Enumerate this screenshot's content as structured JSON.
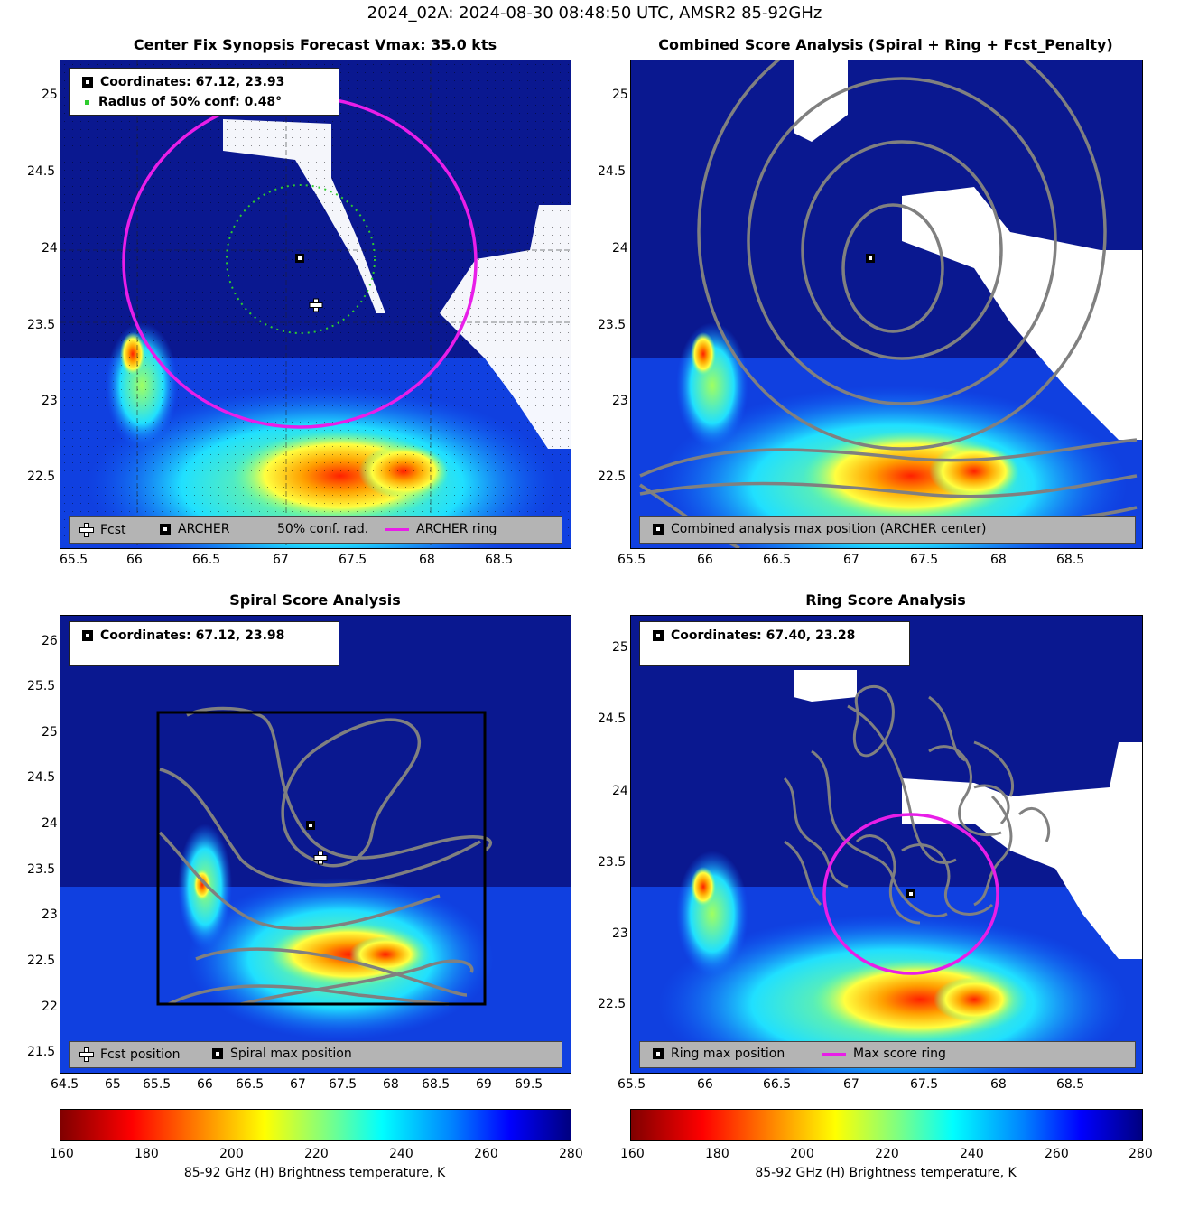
{
  "suptitle": "2024_02A: 2024-08-30 08:48:50 UTC, AMSR2 85-92GHz",
  "panels": {
    "tl": {
      "title": "Center Fix Synopsis      Forecast Vmax: 35.0 kts",
      "info": [
        "Coordinates: 67.12, 23.93",
        "Radius of 50% conf: 0.48°"
      ],
      "legend": [
        "Fcst",
        "ARCHER",
        "50% conf. rad.",
        "ARCHER ring"
      ],
      "xticks": [
        "65.5",
        "66",
        "66.5",
        "67",
        "67.5",
        "68",
        "68.5"
      ],
      "yticks": [
        "25",
        "24.5",
        "24",
        "23.5",
        "23",
        "22.5"
      ]
    },
    "tr": {
      "title": "Combined Score Analysis (Spiral + Ring + Fcst_Penalty)",
      "legend": [
        "Combined analysis max position (ARCHER center)"
      ],
      "xticks": [
        "65.5",
        "66",
        "66.5",
        "67",
        "67.5",
        "68",
        "68.5"
      ],
      "yticks": [
        "25",
        "24.5",
        "24",
        "23.5",
        "23",
        "22.5"
      ]
    },
    "bl": {
      "title": "Spiral Score Analysis",
      "info": [
        "Coordinates: 67.12, 23.98"
      ],
      "legend": [
        "Fcst position",
        "Spiral max position"
      ],
      "xticks": [
        "64.5",
        "65",
        "65.5",
        "66",
        "66.5",
        "67",
        "67.5",
        "68",
        "68.5",
        "69",
        "69.5"
      ],
      "yticks": [
        "26",
        "25.5",
        "25",
        "24.5",
        "24",
        "23.5",
        "23",
        "22.5",
        "22",
        "21.5"
      ]
    },
    "br": {
      "title": "Ring Score Analysis",
      "info": [
        "Coordinates: 67.40, 23.28"
      ],
      "legend": [
        "Ring max position",
        "Max score ring"
      ],
      "xticks": [
        "65.5",
        "66",
        "66.5",
        "67",
        "67.5",
        "68",
        "68.5"
      ],
      "yticks": [
        "25",
        "24.5",
        "24",
        "23.5",
        "23",
        "22.5"
      ]
    }
  },
  "colorbar": {
    "ticks": [
      "160",
      "180",
      "200",
      "220",
      "240",
      "260",
      "280"
    ],
    "label": "85-92 GHz (H) Brightness temperature, K",
    "colormap": "jet (reversed)",
    "range": [
      160,
      280
    ]
  },
  "colors": {
    "ring": "#e81ee8",
    "contour": "#808080",
    "conf": "#2ecc2e"
  },
  "chart_data": [
    {
      "type": "heatmap",
      "title": "Center Fix Synopsis      Forecast Vmax: 35.0 kts",
      "xlim": [
        65.5,
        68.95
      ],
      "ylim": [
        22.05,
        25.2
      ],
      "points": {
        "archer_center": [
          67.12,
          23.93
        ],
        "fcst": [
          67.23,
          23.65
        ]
      },
      "archer_ring_radius_deg": 1.2,
      "conf_radius_deg": 0.48
    },
    {
      "type": "heatmap",
      "title": "Combined Score Analysis (Spiral + Ring + Fcst_Penalty)",
      "xlim": [
        65.5,
        68.95
      ],
      "ylim": [
        22.05,
        25.2
      ],
      "points": {
        "max_position": [
          67.12,
          23.93
        ]
      }
    },
    {
      "type": "heatmap",
      "title": "Spiral Score Analysis",
      "xlim": [
        64.5,
        69.95
      ],
      "ylim": [
        21.3,
        26.3
      ],
      "points": {
        "spiral_max": [
          67.12,
          23.98
        ],
        "fcst": [
          67.23,
          23.65
        ]
      },
      "box": {
        "x": [
          65.5,
          69.0
        ],
        "y": [
          22.05,
          25.25
        ]
      }
    },
    {
      "type": "heatmap",
      "title": "Ring Score Analysis",
      "xlim": [
        65.5,
        68.95
      ],
      "ylim": [
        22.05,
        25.2
      ],
      "points": {
        "ring_max": [
          67.4,
          23.28
        ]
      },
      "max_score_ring_radius_deg": 0.55
    }
  ]
}
